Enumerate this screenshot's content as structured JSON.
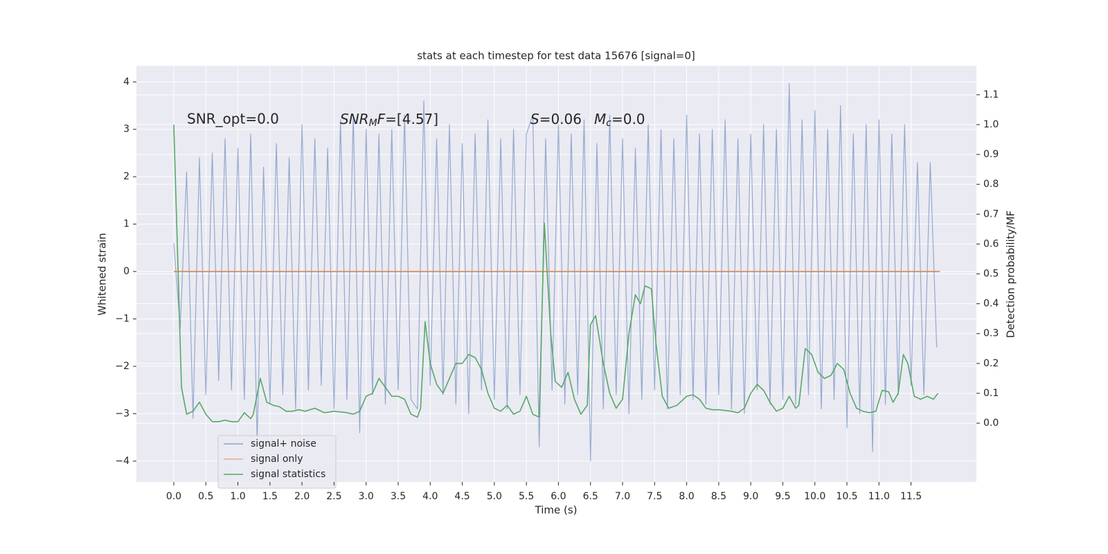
{
  "chart_data": {
    "type": "line",
    "title": "stats at each timestep for test data 15676 [signal=0]",
    "xlabel": "Time (s)",
    "ylabel": "Whitened strain",
    "y2label": "Detection probability/MF",
    "annotations": [
      [
        "SNR_opt=0.0"
      ],
      [
        "SNR",
        "M",
        "F",
        "=[4.57]"
      ],
      [
        "S",
        "=0.06"
      ],
      [
        "M",
        "c",
        "=0.0"
      ]
    ],
    "xlim": [
      -0.583,
      12.52
    ],
    "ylim": [
      -4.44,
      4.34
    ],
    "y2lim": [
      -0.197,
      1.197
    ],
    "xticks": [
      {
        "value": 0,
        "label": "0.0"
      },
      0.5,
      {
        "value": 1,
        "label": "1.0"
      },
      1.5,
      {
        "value": 2,
        "label": "2.0"
      },
      2.5,
      {
        "value": 3,
        "label": "3.0"
      },
      3.5,
      {
        "value": 4,
        "label": "4.0"
      },
      4.5,
      {
        "value": 5,
        "label": "5.0"
      },
      5.5,
      {
        "value": 6,
        "label": "6.0"
      },
      6.5,
      {
        "value": 7,
        "label": "7.0"
      },
      7.5,
      {
        "value": 8,
        "label": "8.0"
      },
      8.5,
      {
        "value": 9,
        "label": "9.0"
      },
      9.5,
      {
        "value": 10,
        "label": "10.0"
      },
      10.5,
      {
        "value": 11,
        "label": "11.0"
      },
      11.5
    ],
    "yticks": [
      {
        "value": -4,
        "label": "−4"
      },
      {
        "value": -3,
        "label": "−3"
      },
      {
        "value": -2,
        "label": "−2"
      },
      {
        "value": -1,
        "label": "−1"
      },
      0,
      1,
      2,
      3,
      4
    ],
    "y2ticks": [
      {
        "value": 0,
        "label": "0.0"
      },
      0.1,
      0.2,
      0.3,
      0.4,
      0.5,
      0.6,
      0.7,
      0.8,
      0.9,
      {
        "value": 1,
        "label": "1.0"
      },
      1.1
    ],
    "grid": true,
    "legend_loc": "lower left",
    "series": [
      {
        "name": "signal+ noise",
        "color": "#4c72b0",
        "x": [
          0,
          0.1,
          0.2,
          0.3,
          0.4,
          0.5,
          0.6,
          0.7,
          0.8,
          0.9,
          1,
          1.1,
          1.2,
          1.3,
          1.4,
          1.5,
          1.6,
          1.7,
          1.8,
          1.9,
          2,
          2.1,
          2.2,
          2.3,
          2.4,
          2.5,
          2.6,
          2.7,
          2.8,
          2.9,
          3,
          3.1,
          3.2,
          3.3,
          3.4,
          3.5,
          3.6,
          3.7,
          3.8,
          3.9,
          4,
          4.1,
          4.2,
          4.3,
          4.4,
          4.5,
          4.6,
          4.7,
          4.8,
          4.9,
          5,
          5.1,
          5.2,
          5.3,
          5.4,
          5.5,
          5.6,
          5.7,
          5.8,
          5.9,
          6,
          6.1,
          6.2,
          6.3,
          6.4,
          6.5,
          6.6,
          6.7,
          6.8,
          6.9,
          7,
          7.1,
          7.2,
          7.3,
          7.4,
          7.5,
          7.6,
          7.7,
          7.8,
          7.9,
          8,
          8.1,
          8.2,
          8.3,
          8.4,
          8.5,
          8.6,
          8.7,
          8.8,
          8.9,
          9,
          9.1,
          9.2,
          9.3,
          9.4,
          9.5,
          9.6,
          9.7,
          9.8,
          9.9,
          10,
          10.1,
          10.2,
          10.3,
          10.4,
          10.5,
          10.6,
          10.7,
          10.8,
          10.9,
          11,
          11.1,
          11.2,
          11.3,
          11.4,
          11.5,
          11.6,
          11.7,
          11.8,
          11.9
        ],
        "values": [
          0.6,
          -1.2,
          2.1,
          -3.1,
          2.4,
          -2.6,
          2.5,
          -2.3,
          2.8,
          -2.5,
          2.6,
          -2.7,
          2.9,
          -3.6,
          2.2,
          -2.8,
          2.7,
          -2.6,
          2.4,
          -2.9,
          3.1,
          -2.5,
          2.8,
          -2.4,
          2.6,
          -2.9,
          3.2,
          -2.7,
          3.3,
          -3.4,
          3.0,
          -2.6,
          2.9,
          -2.8,
          3.0,
          -2.5,
          3.3,
          -2.7,
          -2.9,
          3.6,
          -2.4,
          2.8,
          -2.6,
          3.1,
          -2.8,
          2.7,
          -3.0,
          2.9,
          -2.5,
          3.2,
          -2.7,
          2.8,
          -2.9,
          3.0,
          -2.6,
          2.9,
          3.3,
          -3.7,
          2.8,
          -2.5,
          3.1,
          -2.8,
          2.9,
          -2.6,
          3.2,
          -4.0,
          2.7,
          -2.9,
          3.3,
          -2.6,
          2.8,
          -3.0,
          2.6,
          -2.7,
          3.1,
          -2.5,
          3.0,
          -2.9,
          2.8,
          -2.6,
          3.3,
          -2.7,
          2.9,
          -2.8,
          3.0,
          -2.6,
          3.2,
          -2.9,
          2.8,
          -3.0,
          2.9,
          -2.5,
          3.1,
          -2.8,
          3.0,
          -2.7,
          3.97,
          -2.8,
          3.2,
          -2.6,
          3.4,
          -2.9,
          3.0,
          -2.7,
          3.5,
          -3.3,
          2.9,
          -3.0,
          3.1,
          -3.8,
          3.2,
          -2.8,
          2.9,
          -2.6,
          3.1,
          -2.4,
          2.3,
          -2.6,
          2.3,
          -1.6
        ]
      },
      {
        "name": "signal only",
        "color": "#dd8452",
        "x": [
          0,
          11.95
        ],
        "values": [
          0,
          0
        ]
      },
      {
        "name": "signal statistics",
        "color": "#55a868",
        "axis": "y2",
        "x": [
          0,
          0.12,
          0.2,
          0.3,
          0.4,
          0.5,
          0.6,
          0.7,
          0.8,
          0.9,
          1.0,
          1.1,
          1.2,
          1.24,
          1.35,
          1.45,
          1.55,
          1.65,
          1.75,
          1.85,
          1.95,
          2.05,
          2.2,
          2.35,
          2.5,
          2.7,
          2.8,
          2.9,
          3.0,
          3.1,
          3.2,
          3.3,
          3.4,
          3.5,
          3.6,
          3.7,
          3.8,
          3.85,
          3.92,
          4.0,
          4.1,
          4.2,
          4.3,
          4.4,
          4.5,
          4.6,
          4.7,
          4.8,
          4.9,
          5.0,
          5.1,
          5.2,
          5.3,
          5.4,
          5.5,
          5.6,
          5.7,
          5.78,
          5.88,
          5.95,
          6.05,
          6.15,
          6.25,
          6.35,
          6.45,
          6.5,
          6.58,
          6.7,
          6.8,
          6.9,
          7.0,
          7.1,
          7.2,
          7.28,
          7.35,
          7.45,
          7.52,
          7.62,
          7.72,
          7.85,
          8.0,
          8.1,
          8.2,
          8.3,
          8.4,
          8.5,
          8.7,
          8.8,
          8.9,
          9.0,
          9.1,
          9.2,
          9.3,
          9.4,
          9.5,
          9.6,
          9.7,
          9.75,
          9.85,
          9.95,
          10.05,
          10.15,
          10.25,
          10.35,
          10.45,
          10.55,
          10.65,
          10.75,
          10.85,
          10.95,
          11.05,
          11.15,
          11.22,
          11.3,
          11.38,
          11.45,
          11.55,
          11.65,
          11.75,
          11.85,
          11.92
        ],
        "values": [
          1.0,
          0.12,
          0.03,
          0.04,
          0.07,
          0.03,
          0.005,
          0.005,
          0.01,
          0.005,
          0.005,
          0.035,
          0.015,
          0.03,
          0.15,
          0.07,
          0.06,
          0.055,
          0.04,
          0.04,
          0.045,
          0.04,
          0.05,
          0.035,
          0.04,
          0.035,
          0.03,
          0.04,
          0.09,
          0.1,
          0.15,
          0.12,
          0.09,
          0.09,
          0.08,
          0.03,
          0.02,
          0.05,
          0.34,
          0.2,
          0.13,
          0.1,
          0.15,
          0.2,
          0.2,
          0.23,
          0.22,
          0.18,
          0.1,
          0.05,
          0.04,
          0.06,
          0.03,
          0.04,
          0.09,
          0.03,
          0.02,
          0.67,
          0.3,
          0.14,
          0.12,
          0.17,
          0.08,
          0.03,
          0.06,
          0.33,
          0.36,
          0.2,
          0.1,
          0.05,
          0.08,
          0.3,
          0.43,
          0.4,
          0.46,
          0.45,
          0.27,
          0.09,
          0.05,
          0.06,
          0.09,
          0.095,
          0.08,
          0.05,
          0.045,
          0.045,
          0.04,
          0.035,
          0.05,
          0.1,
          0.13,
          0.11,
          0.07,
          0.04,
          0.05,
          0.09,
          0.05,
          0.06,
          0.25,
          0.23,
          0.17,
          0.15,
          0.16,
          0.2,
          0.18,
          0.1,
          0.05,
          0.04,
          0.035,
          0.04,
          0.11,
          0.105,
          0.07,
          0.1,
          0.23,
          0.2,
          0.09,
          0.08,
          0.09,
          0.08,
          0.1
        ]
      }
    ]
  }
}
